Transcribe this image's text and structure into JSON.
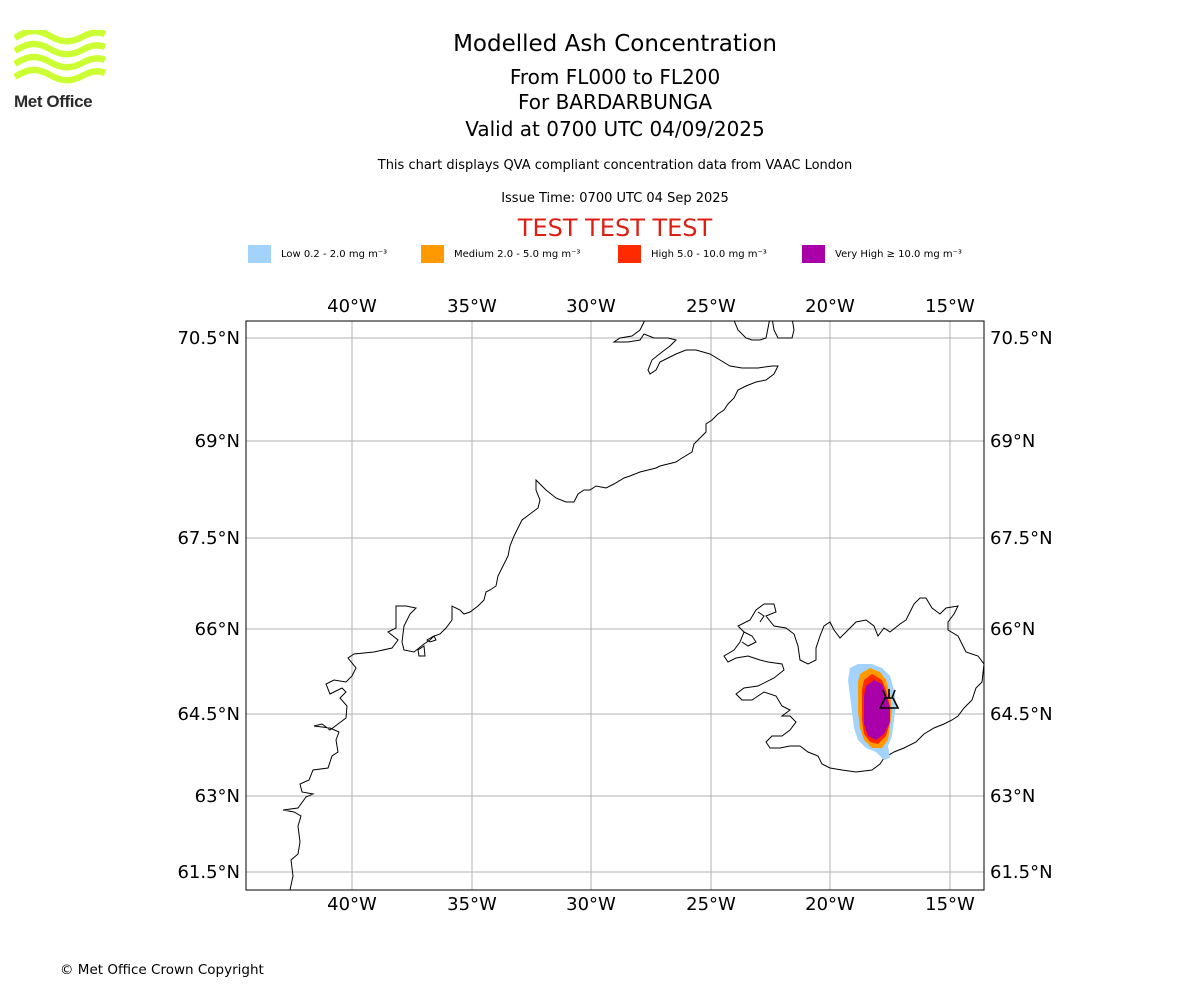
{
  "brand": {
    "name": "Met Office",
    "logo_color": "#ccff33"
  },
  "header": {
    "title": "Modelled Ash Concentration",
    "line2": "From FL000 to FL200",
    "line3": "For BARDARBUNGA",
    "line4": "Valid at 0700 UTC 04/09/2025",
    "description": "This chart displays QVA compliant concentration data from VAAC London",
    "issue_time": "Issue Time: 0700 UTC 04 Sep 2025",
    "test_banner": "TEST TEST TEST",
    "test_color": "#dd1f13"
  },
  "legend": [
    {
      "label": "Low 0.2 - 2.0 mg m⁻³",
      "color": "#a3d3fb"
    },
    {
      "label": "Medium 2.0 - 5.0 mg m⁻³",
      "color": "#ff9900"
    },
    {
      "label": "High 5.0 - 10.0 mg m⁻³",
      "color": "#ff2a00"
    },
    {
      "label": "Very High ≥ 10.0 mg m⁻³",
      "color": "#aa00aa"
    }
  ],
  "map": {
    "lon_ticks": [
      "40°W",
      "35°W",
      "30°W",
      "25°W",
      "20°W",
      "15°W"
    ],
    "lat_ticks": [
      "70.5°N",
      "69°N",
      "67.5°N",
      "66°N",
      "64.5°N",
      "63°N",
      "61.5°N"
    ],
    "extent": {
      "lon_min": -44.4,
      "lon_max": -13.6,
      "lat_min": 61.25,
      "lat_max": 70.75
    },
    "grid": true,
    "volcano": {
      "name": "BARDARBUNGA",
      "lon": -17.5,
      "lat": 64.6,
      "icon": "volcano-icon"
    }
  },
  "footer": {
    "copyright": "© Met Office Crown Copyright"
  }
}
